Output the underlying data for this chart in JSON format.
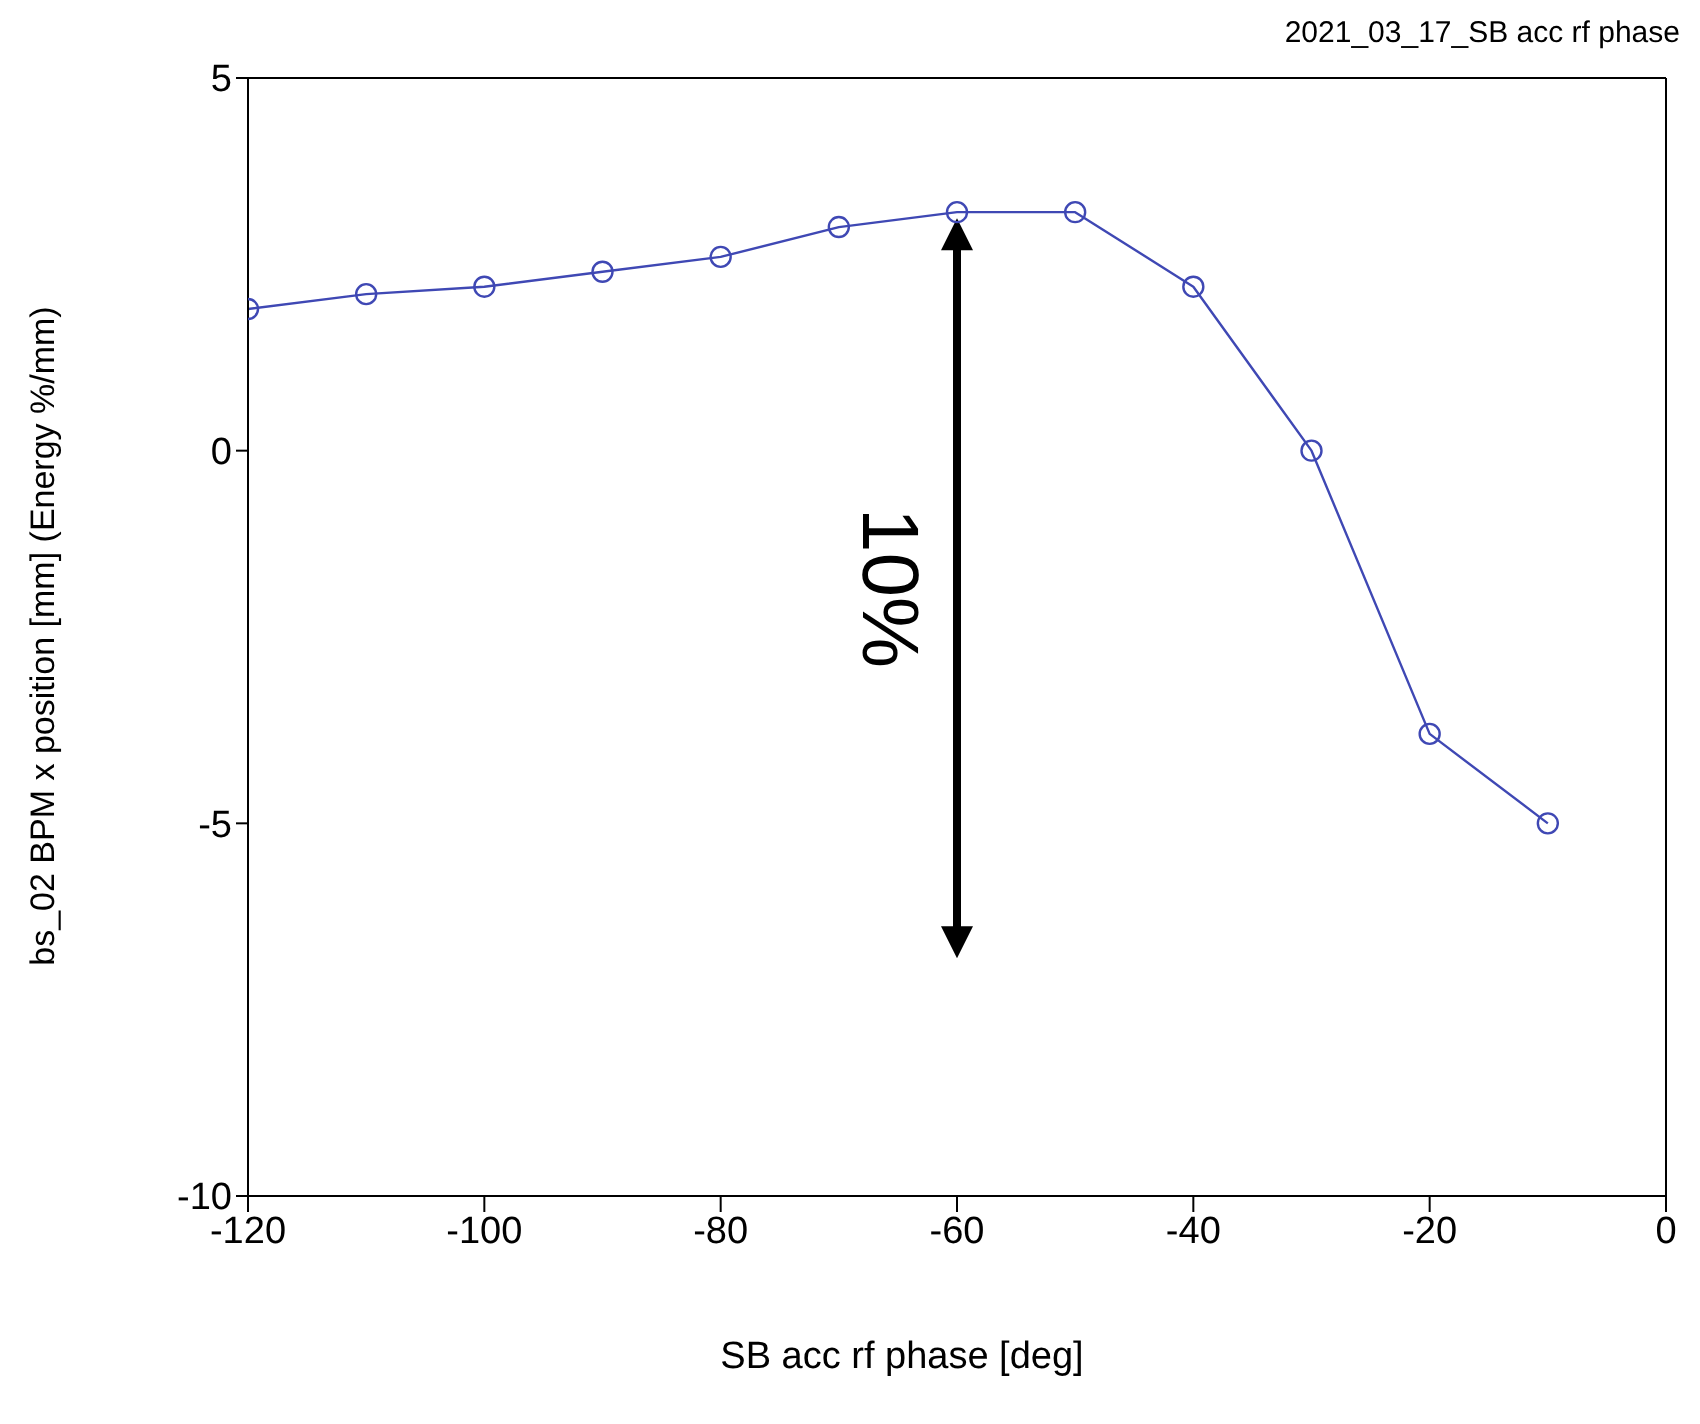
{
  "chart_data": {
    "type": "line",
    "title": "2021_03_17_SB acc rf phase",
    "xlabel": "SB acc rf phase [deg]",
    "ylabel": "bs_02 BPM x position [mm] (Energy %/mm)",
    "x": [
      -120,
      -110,
      -100,
      -90,
      -80,
      -70,
      -60,
      -50,
      -40,
      -30,
      -20,
      -10
    ],
    "series": [
      {
        "color": "#3f48b4",
        "values": [
          1.9,
          2.1,
          2.2,
          2.4,
          2.6,
          3.0,
          3.2,
          3.2,
          2.2,
          0,
          -3.8,
          -5.0
        ]
      }
    ],
    "xlim": [
      -120,
      0
    ],
    "xticks": [
      -120,
      -100,
      -80,
      -60,
      -40,
      -20,
      0
    ],
    "ylim": [
      -10,
      5
    ],
    "yticks": [
      -10,
      -5,
      0,
      5
    ],
    "grid": false,
    "marker": "circle",
    "line_style": "solid",
    "annotations": [
      "10%"
    ]
  }
}
